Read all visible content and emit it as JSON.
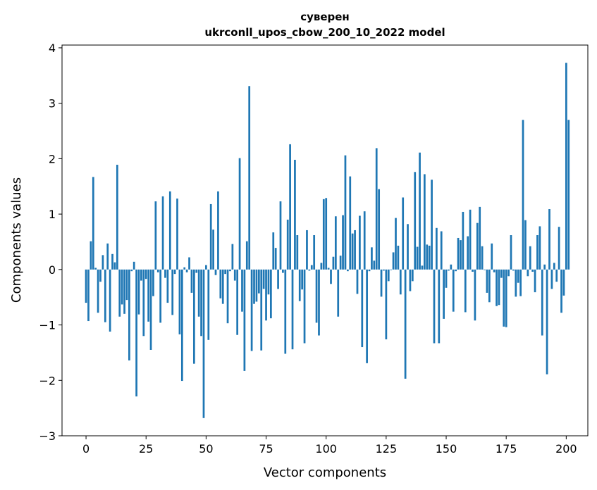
{
  "chart_data": {
    "type": "bar",
    "title_line1": "суверен",
    "title_line2": "ukrconll_upos_cbow_200_10_2022 model",
    "xlabel": "Vector components",
    "ylabel": "Components values",
    "xlim": [
      -10,
      209
    ],
    "ylim": [
      -3,
      4.05
    ],
    "xticks": [
      0,
      25,
      50,
      75,
      100,
      125,
      150,
      175,
      200
    ],
    "yticks": [
      -3,
      -2,
      -1,
      0,
      1,
      2,
      3,
      4
    ],
    "xtick_labels": [
      "0",
      "25",
      "50",
      "75",
      "100",
      "125",
      "150",
      "175",
      "200"
    ],
    "ytick_labels": [
      "−3",
      "−2",
      "−1",
      "0",
      "1",
      "2",
      "3",
      "4"
    ],
    "bar_color": "#1f77b4",
    "grid": false,
    "legend": "none",
    "values": [
      -0.6,
      -0.93,
      0.51,
      1.67,
      0.03,
      -0.78,
      -0.22,
      0.26,
      -0.95,
      0.47,
      -1.12,
      0.28,
      0.13,
      1.89,
      -0.85,
      -0.63,
      -0.8,
      -0.55,
      -1.64,
      -0.03,
      0.14,
      -2.29,
      -0.81,
      -0.2,
      -1.2,
      -0.17,
      -0.94,
      -1.45,
      -0.48,
      1.23,
      -0.05,
      -0.96,
      1.32,
      -0.15,
      -0.6,
      1.41,
      -0.82,
      -0.08,
      1.28,
      -1.17,
      -2.01,
      0.04,
      -0.05,
      0.22,
      -0.42,
      -1.7,
      -0.06,
      -0.85,
      -1.2,
      -2.68,
      0.08,
      -1.27,
      1.18,
      0.72,
      -0.1,
      1.41,
      -0.52,
      -0.62,
      -0.08,
      -0.97,
      -0.03,
      0.46,
      -0.2,
      -1.18,
      2.01,
      -0.76,
      -1.83,
      0.51,
      3.31,
      -1.47,
      -0.62,
      -0.58,
      -0.43,
      -1.46,
      -0.35,
      -0.92,
      -0.45,
      -0.88,
      0.67,
      0.39,
      -0.35,
      1.23,
      -0.06,
      -1.52,
      0.9,
      2.26,
      -1.44,
      1.98,
      0.62,
      -0.57,
      -0.36,
      -1.33,
      0.71,
      -0.02,
      0.08,
      0.62,
      -0.96,
      -1.19,
      0.12,
      1.27,
      1.29,
      0.03,
      -0.26,
      0.23,
      0.96,
      -0.85,
      0.25,
      0.98,
      2.06,
      -0.03,
      1.68,
      0.65,
      0.71,
      -0.44,
      0.97,
      -1.4,
      1.05,
      -1.69,
      -0.03,
      0.4,
      0.16,
      2.19,
      1.45,
      -0.49,
      -0.02,
      -1.26,
      -0.21,
      -0.01,
      0.31,
      0.93,
      0.43,
      -0.45,
      1.3,
      -1.97,
      0.82,
      -0.39,
      -0.21,
      1.76,
      0.41,
      2.11,
      0.07,
      1.72,
      0.45,
      0.43,
      1.62,
      -1.33,
      0.75,
      -1.33,
      0.69,
      -0.89,
      -0.33,
      -0.02,
      0.09,
      -0.76,
      -0.03,
      0.57,
      0.53,
      1.04,
      -0.77,
      0.6,
      1.08,
      -0.04,
      -0.92,
      0.84,
      1.13,
      0.42,
      -0.01,
      -0.42,
      -0.59,
      0.47,
      -0.05,
      -0.66,
      -0.64,
      -0.15,
      -1.03,
      -1.04,
      -0.12,
      0.62,
      -0.02,
      -0.49,
      -0.24,
      -0.48,
      2.7,
      0.89,
      -0.12,
      0.42,
      -0.04,
      -0.41,
      0.62,
      0.78,
      -1.19,
      0.09,
      -1.89,
      1.09,
      -0.35,
      0.12,
      -0.22,
      0.77,
      -0.78,
      -0.47,
      3.73,
      2.7
    ]
  }
}
